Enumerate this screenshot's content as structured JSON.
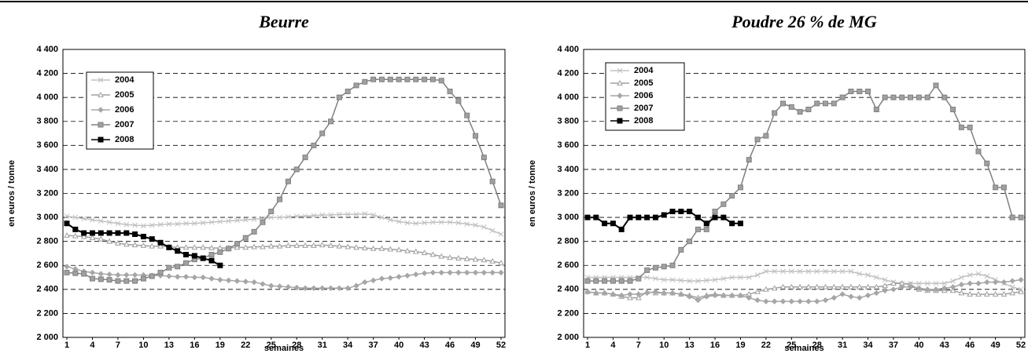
{
  "chart_data": [
    {
      "type": "line",
      "title": "Beurre",
      "x_label": "semaines",
      "y_label": "en euros / tonne",
      "x": [
        1,
        2,
        3,
        4,
        5,
        6,
        7,
        8,
        9,
        10,
        11,
        12,
        13,
        14,
        15,
        16,
        17,
        18,
        19,
        20,
        21,
        22,
        23,
        24,
        25,
        26,
        27,
        28,
        29,
        30,
        31,
        32,
        33,
        34,
        35,
        36,
        37,
        38,
        39,
        40,
        41,
        42,
        43,
        44,
        45,
        46,
        47,
        48,
        49,
        50,
        51,
        52
      ],
      "xlim": [
        1,
        52
      ],
      "xticks": [
        1,
        4,
        7,
        10,
        13,
        16,
        19,
        22,
        25,
        28,
        31,
        34,
        37,
        40,
        43,
        46,
        49,
        52
      ],
      "ylim": [
        2000,
        4400
      ],
      "yticks": [
        {
          "value": 2000,
          "label": "2 000"
        },
        {
          "value": 2200,
          "label": "2 200"
        },
        {
          "value": 2400,
          "label": "2 400"
        },
        {
          "value": 2600,
          "label": "2 600"
        },
        {
          "value": 2800,
          "label": "2 800"
        },
        {
          "value": 3000,
          "label": "3 000"
        },
        {
          "value": 3200,
          "label": "3 200"
        },
        {
          "value": 3400,
          "label": "3 400"
        },
        {
          "value": 3600,
          "label": "3 600"
        },
        {
          "value": 3800,
          "label": "3 800"
        },
        {
          "value": 4000,
          "label": "4 000"
        },
        {
          "value": 4200,
          "label": "4 200"
        },
        {
          "value": 4400,
          "label": "4 400"
        }
      ],
      "grid": true,
      "legend": "upper left",
      "series": [
        {
          "name": "2004",
          "color": "#c0c0c0",
          "marker": "x",
          "values": [
            3010,
            3000,
            2990,
            2980,
            2970,
            2960,
            2950,
            2940,
            2935,
            2930,
            2935,
            2940,
            2945,
            2945,
            2950,
            2950,
            2955,
            2960,
            2965,
            2970,
            2975,
            2980,
            2985,
            2990,
            3000,
            3000,
            3005,
            3010,
            3010,
            3015,
            3020,
            3020,
            3025,
            3025,
            3025,
            3030,
            3020,
            3000,
            2980,
            2965,
            2955,
            2950,
            2955,
            2960,
            2960,
            2960,
            2955,
            2945,
            2935,
            2920,
            2890,
            2860
          ]
        },
        {
          "name": "2005",
          "color": "#a0a0a0",
          "marker": "triangle",
          "values": [
            2850,
            2845,
            2840,
            2830,
            2820,
            2800,
            2785,
            2775,
            2770,
            2765,
            2760,
            2760,
            2755,
            2750,
            2750,
            2750,
            2750,
            2745,
            2745,
            2745,
            2750,
            2750,
            2755,
            2755,
            2760,
            2760,
            2765,
            2765,
            2765,
            2765,
            2770,
            2765,
            2760,
            2755,
            2750,
            2745,
            2740,
            2740,
            2735,
            2730,
            2720,
            2715,
            2705,
            2690,
            2675,
            2665,
            2660,
            2655,
            2650,
            2645,
            2635,
            2620
          ]
        },
        {
          "name": "2006",
          "color": "#a6a6a6",
          "marker": "diamond",
          "values": [
            2590,
            2570,
            2550,
            2540,
            2530,
            2525,
            2520,
            2520,
            2520,
            2520,
            2515,
            2515,
            2510,
            2505,
            2505,
            2500,
            2500,
            2490,
            2480,
            2475,
            2470,
            2465,
            2460,
            2445,
            2430,
            2425,
            2420,
            2415,
            2410,
            2410,
            2410,
            2410,
            2410,
            2410,
            2430,
            2460,
            2475,
            2490,
            2495,
            2505,
            2515,
            2525,
            2535,
            2540,
            2540,
            2540,
            2540,
            2540,
            2540,
            2540,
            2540,
            2540
          ]
        },
        {
          "name": "2007",
          "color": "#808080",
          "marker": "square",
          "values": [
            2540,
            2535,
            2530,
            2490,
            2485,
            2480,
            2470,
            2470,
            2470,
            2490,
            2510,
            2540,
            2580,
            2590,
            2620,
            2650,
            2660,
            2690,
            2710,
            2740,
            2780,
            2830,
            2880,
            2960,
            3050,
            3150,
            3300,
            3400,
            3500,
            3600,
            3700,
            3800,
            4000,
            4050,
            4100,
            4130,
            4150,
            4150,
            4150,
            4150,
            4150,
            4150,
            4150,
            4150,
            4140,
            4050,
            3970,
            3850,
            3680,
            3500,
            3300,
            3100
          ]
        },
        {
          "name": "2008",
          "color": "#000000",
          "marker": "square",
          "values": [
            2950,
            2900,
            2870,
            2870,
            2870,
            2870,
            2870,
            2870,
            2860,
            2840,
            2820,
            2790,
            2750,
            2720,
            2690,
            2680,
            2660,
            2640,
            2600,
            null,
            null,
            null,
            null,
            null,
            null,
            null,
            null,
            null,
            null,
            null,
            null,
            null,
            null,
            null,
            null,
            null,
            null,
            null,
            null,
            null,
            null,
            null,
            null,
            null,
            null,
            null,
            null,
            null,
            null,
            null,
            null,
            null
          ]
        }
      ]
    },
    {
      "type": "line",
      "title": "Poudre 26 % de MG",
      "x_label": "semaines",
      "y_label": "en euros / tonne",
      "x": [
        1,
        2,
        3,
        4,
        5,
        6,
        7,
        8,
        9,
        10,
        11,
        12,
        13,
        14,
        15,
        16,
        17,
        18,
        19,
        20,
        21,
        22,
        23,
        24,
        25,
        26,
        27,
        28,
        29,
        30,
        31,
        32,
        33,
        34,
        35,
        36,
        37,
        38,
        39,
        40,
        41,
        42,
        43,
        44,
        45,
        46,
        47,
        48,
        49,
        50,
        51,
        52
      ],
      "xlim": [
        1,
        52
      ],
      "xticks": [
        1,
        4,
        7,
        10,
        13,
        16,
        19,
        22,
        25,
        28,
        31,
        34,
        37,
        40,
        43,
        46,
        49,
        52
      ],
      "ylim": [
        2000,
        4400
      ],
      "yticks": [
        {
          "value": 2000,
          "label": "2 000"
        },
        {
          "value": 2200,
          "label": "2 200"
        },
        {
          "value": 2400,
          "label": "2 400"
        },
        {
          "value": 2600,
          "label": "2 600"
        },
        {
          "value": 2800,
          "label": "2 800"
        },
        {
          "value": 3000,
          "label": "3 000"
        },
        {
          "value": 3200,
          "label": "3 200"
        },
        {
          "value": 3400,
          "label": "3 400"
        },
        {
          "value": 3600,
          "label": "3 600"
        },
        {
          "value": 3800,
          "label": "3 800"
        },
        {
          "value": 4000,
          "label": "4 000"
        },
        {
          "value": 4200,
          "label": "4 200"
        },
        {
          "value": 4400,
          "label": "4 400"
        }
      ],
      "grid": true,
      "legend": "upper left",
      "series": [
        {
          "name": "2004",
          "color": "#c0c0c0",
          "marker": "x",
          "values": [
            2500,
            2500,
            2500,
            2500,
            2500,
            2500,
            2500,
            2500,
            2490,
            2480,
            2480,
            2475,
            2470,
            2470,
            2475,
            2480,
            2490,
            2500,
            2500,
            2500,
            2520,
            2550,
            2550,
            2550,
            2550,
            2550,
            2550,
            2550,
            2550,
            2550,
            2550,
            2550,
            2530,
            2520,
            2500,
            2480,
            2460,
            2450,
            2450,
            2450,
            2450,
            2450,
            2450,
            2470,
            2500,
            2520,
            2530,
            2510,
            2480,
            2450,
            2420,
            2400
          ]
        },
        {
          "name": "2005",
          "color": "#a0a0a0",
          "marker": "triangle",
          "values": [
            2380,
            2370,
            2370,
            2360,
            2340,
            2330,
            2330,
            2380,
            2370,
            2370,
            2370,
            2360,
            2350,
            2330,
            2350,
            2360,
            2350,
            2350,
            2350,
            2360,
            2380,
            2400,
            2410,
            2420,
            2420,
            2420,
            2420,
            2420,
            2420,
            2420,
            2420,
            2420,
            2420,
            2420,
            2420,
            2430,
            2450,
            2450,
            2440,
            2400,
            2390,
            2390,
            2390,
            2390,
            2370,
            2360,
            2360,
            2360,
            2360,
            2360,
            2370,
            2380
          ]
        },
        {
          "name": "2006",
          "color": "#a6a6a6",
          "marker": "diamond",
          "values": [
            2380,
            2370,
            2370,
            2360,
            2350,
            2360,
            2360,
            2370,
            2380,
            2370,
            2370,
            2360,
            2340,
            2310,
            2340,
            2350,
            2350,
            2350,
            2350,
            2330,
            2310,
            2300,
            2300,
            2300,
            2300,
            2300,
            2300,
            2300,
            2310,
            2330,
            2360,
            2340,
            2330,
            2350,
            2370,
            2390,
            2400,
            2420,
            2420,
            2410,
            2400,
            2400,
            2410,
            2420,
            2440,
            2450,
            2450,
            2460,
            2460,
            2460,
            2470,
            2480
          ]
        },
        {
          "name": "2007",
          "color": "#808080",
          "marker": "square",
          "values": [
            2470,
            2470,
            2470,
            2470,
            2470,
            2470,
            2490,
            2560,
            2580,
            2590,
            2600,
            2730,
            2800,
            2900,
            2900,
            3050,
            3110,
            3180,
            3250,
            3480,
            3650,
            3680,
            3870,
            3950,
            3920,
            3880,
            3900,
            3950,
            3950,
            3950,
            4000,
            4050,
            4050,
            4050,
            3900,
            4000,
            4000,
            4000,
            4000,
            4000,
            4000,
            4100,
            4000,
            3900,
            3750,
            3750,
            3550,
            3450,
            3250,
            3250,
            3000,
            3000
          ]
        },
        {
          "name": "2008",
          "color": "#000000",
          "marker": "square",
          "values": [
            3000,
            3000,
            2950,
            2950,
            2900,
            3000,
            3000,
            3000,
            3000,
            3020,
            3050,
            3050,
            3050,
            3000,
            2950,
            3000,
            3000,
            2950,
            2950,
            null,
            null,
            null,
            null,
            null,
            null,
            null,
            null,
            null,
            null,
            null,
            null,
            null,
            null,
            null,
            null,
            null,
            null,
            null,
            null,
            null,
            null,
            null,
            null,
            null,
            null,
            null,
            null,
            null,
            null,
            null,
            null,
            null
          ]
        }
      ]
    }
  ]
}
